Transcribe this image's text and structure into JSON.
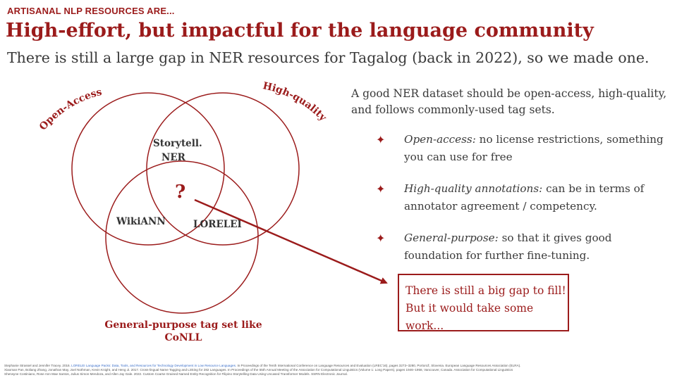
{
  "header": {
    "kicker": "ARTISANAL NLP RESOURCES ARE...",
    "title": "High-effort, but impactful for the language community",
    "subtitle": "There is still a large gap in NER resources for Tagalog (back in 2022), so we made one."
  },
  "venn": {
    "label_top_left": "Open-Access",
    "label_top_right": "High-quality",
    "label_bottom_line1": "General-purpose tag set like",
    "label_bottom_line2": "CoNLL",
    "region_top_line1": "Storytell.",
    "region_top_line2": "NER",
    "region_left": "WikiANN",
    "region_right": "LORELEI",
    "center": "?",
    "accent_color": "#9b1b1b"
  },
  "right": {
    "intro": "A good NER dataset should be open-access, high-quality, and follows commonly-used tag sets.",
    "bullets": [
      {
        "term": "Open-access:",
        "text": "no license restrictions, something you can use for free"
      },
      {
        "term": "High-quality annotations:",
        "text": "can be in terms of annotator agreement / competency."
      },
      {
        "term": "General-purpose:",
        "text": "so that it gives good foundation for further fine-tuning."
      }
    ],
    "bullet_icon": "four-point-star-icon"
  },
  "callout": {
    "text": "There is still a big gap to fill! But it would take some work..."
  },
  "references": {
    "ref1_pre": "Stephanie Strassel and Jennifer Tracey. 2016.",
    "ref1_link": "LORELEI Language Packs: Data, Tools, and Resources for Technology Development in Low Resource Languages.",
    "ref1_post": "In Proceedings of the Tenth International Conference on Language Resources and Evaluation (LREC'16), pages 3273–3280, Portorož, Slovenia. European Language Resources Association (ELRA).",
    "ref2": "Xiaoman Pan, Boliang Zhang, Jonathan May, Joel Nothman, Kevin Knight, and Heng Ji. 2017. Cross-lingual Name Tagging and Linking for 282 Languages. In Proceedings of the 55th Annual Meeting of the Association for Computational Linguistics (Volume 1: Long Papers), pages 1946–1958, Vancouver, Canada. Association for Computational Linguistics",
    "ref3": "Sherwyne Costiniano, Rose Ann Mae Santos, Julius Simon Mendoza, and Allen Jay Gale. 2022. Custom Coarse Grained Named Entity Recognition for Filipino Storytelling Data Using Uncased Transformer Models. SSRN Electronic Journal."
  }
}
